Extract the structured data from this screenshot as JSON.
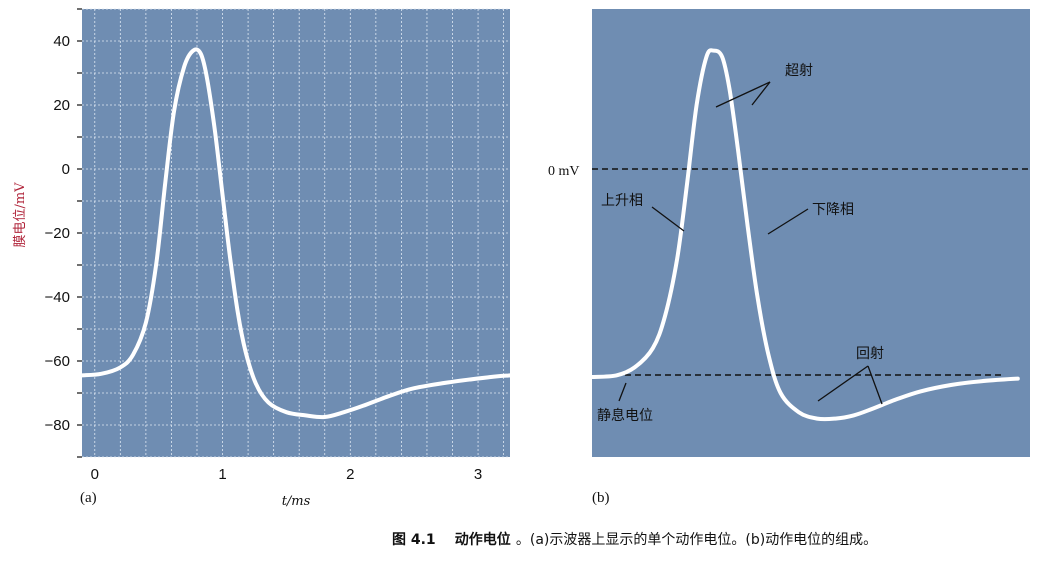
{
  "chart_data": [
    {
      "type": "line",
      "panel_label": "(a)",
      "ylabel": "膜电位/mV",
      "xlabel": "t/ms",
      "xlim": [
        -0.1,
        3.25
      ],
      "ylim": [
        -90,
        50
      ],
      "xticks": [
        0,
        1,
        2,
        3
      ],
      "xtick_labels": [
        "0",
        "1",
        "2",
        "3"
      ],
      "yticks": [
        40,
        20,
        0,
        -20,
        -40,
        -60,
        -80
      ],
      "ytick_labels": [
        "40",
        "20",
        "0",
        "−20",
        "−40",
        "−60",
        "−80"
      ],
      "grid": true,
      "background": "#6f8db2",
      "line_color": "#ffffff",
      "series": [
        {
          "x": [
            -0.1,
            0.05,
            0.2,
            0.3,
            0.4,
            0.48,
            0.55,
            0.62,
            0.7,
            0.77,
            0.83,
            0.88,
            0.94,
            1.0,
            1.06,
            1.12,
            1.18,
            1.26,
            1.36,
            1.5,
            1.65,
            1.8,
            1.95,
            2.1,
            2.3,
            2.5,
            2.8,
            3.1,
            3.25
          ],
          "y": [
            -64.5,
            -64,
            -62,
            -58,
            -48,
            -30,
            -5,
            18,
            32,
            37,
            36,
            28,
            12,
            -8,
            -28,
            -45,
            -57,
            -67,
            -73,
            -76,
            -77,
            -77.5,
            -76,
            -74,
            -71,
            -68.5,
            -66.5,
            -65,
            -64.5
          ]
        }
      ]
    },
    {
      "type": "line",
      "panel_label": "(b)",
      "zero_label": "0 mV",
      "background": "#6f8db2",
      "line_color": "#ffffff",
      "xlim": [
        0,
        3.6
      ],
      "ylim": [
        -90,
        50
      ],
      "reference_lines": [
        {
          "y": 0,
          "style": "dashed"
        },
        {
          "y": -65,
          "style": "dashed"
        }
      ],
      "annotations": {
        "overshoot": "超射",
        "rising": "上升相",
        "falling": "下降相",
        "undershoot": "回射",
        "resting": "静息电位"
      },
      "series": [
        {
          "x": [
            0,
            0.2,
            0.35,
            0.5,
            0.6,
            0.7,
            0.78,
            0.86,
            0.94,
            1.0,
            1.07,
            1.13,
            1.2,
            1.28,
            1.36,
            1.45,
            1.55,
            1.7,
            1.85,
            2.0,
            2.15,
            2.3,
            2.5,
            2.7,
            2.95,
            3.2,
            3.5
          ],
          "y": [
            -65,
            -64.5,
            -62,
            -56,
            -46,
            -28,
            -5,
            20,
            35,
            37,
            35,
            25,
            6,
            -18,
            -40,
            -58,
            -70,
            -76,
            -78,
            -78,
            -77,
            -75,
            -72,
            -69.5,
            -67.5,
            -66.3,
            -65.5
          ]
        }
      ]
    }
  ],
  "caption": {
    "number": "图 4.1",
    "title": "动作电位",
    "text": "。(a)示波器上显示的单个动作电位。(b)动作电位的组成。"
  }
}
